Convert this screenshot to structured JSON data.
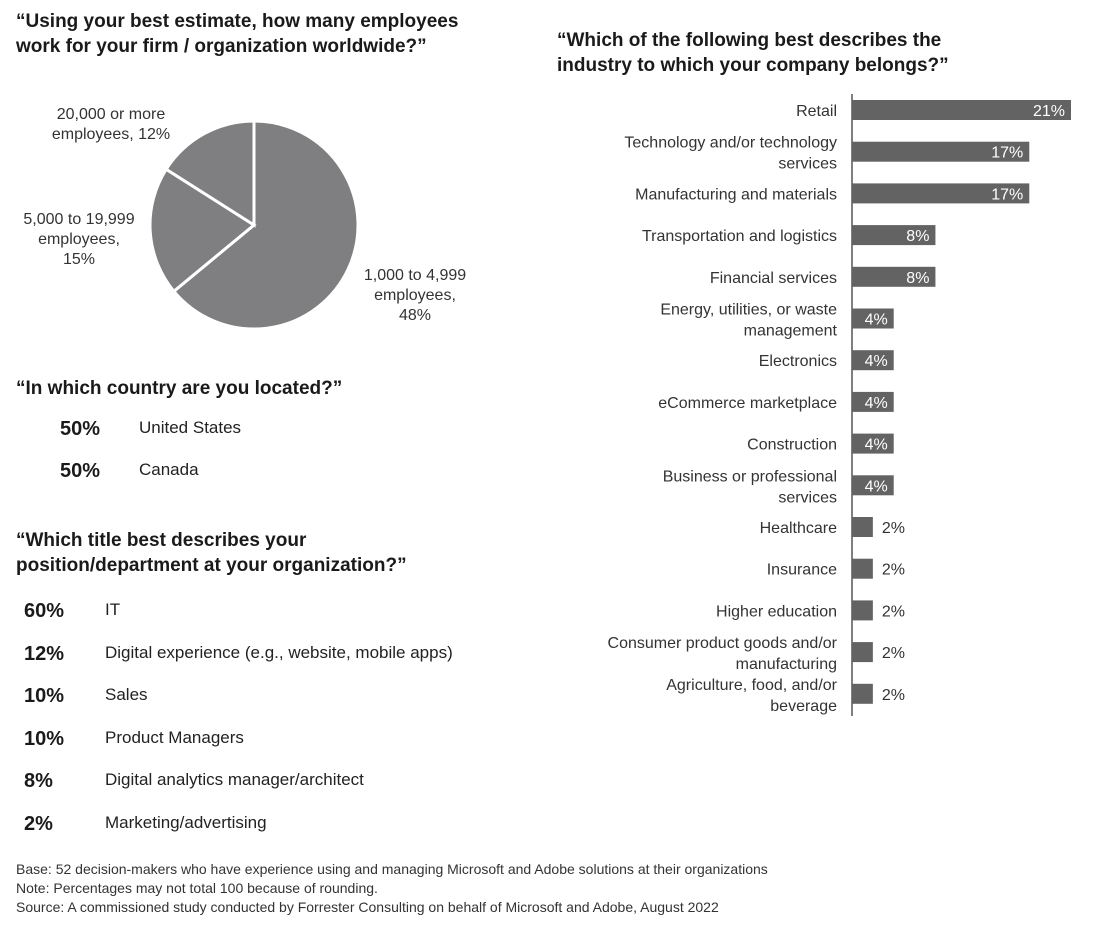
{
  "employees": {
    "question": "“Using your best estimate, how many employees work for your firm / organization worldwide?”",
    "slices": [
      {
        "label_line1": "1,000 to 4,999",
        "label_line2": "employees,",
        "label_line3": "48%"
      },
      {
        "label_line1": "5,000 to 19,999",
        "label_line2": "employees,",
        "label_line3": "15%"
      },
      {
        "label_line1": "20,000 or  more",
        "label_line2": "employees, 12%"
      }
    ]
  },
  "country": {
    "question": "“In which country are you located?”",
    "items": [
      {
        "pct": "50%",
        "label": "United States"
      },
      {
        "pct": "50%",
        "label": "Canada"
      }
    ]
  },
  "title": {
    "question_line1": "“Which title best describes your",
    "question_line2": "position/department at your organization?”",
    "items": [
      {
        "pct": "60%",
        "label": "IT"
      },
      {
        "pct": "12%",
        "label": "Digital experience (e.g., website, mobile apps)"
      },
      {
        "pct": "10%",
        "label": "Sales"
      },
      {
        "pct": "10%",
        "label": "Product Managers"
      },
      {
        "pct": "8%",
        "label": "Digital analytics manager/architect"
      },
      {
        "pct": "2%",
        "label": "Marketing/advertising"
      }
    ]
  },
  "industry": {
    "question_line1": "“Which of the following  best describes the",
    "question_line2": "industry to which your company belongs?”"
  },
  "footer": {
    "base": "Base: 52 decision-makers who have experience using and managing Microsoft and Adobe solutions at their organizations",
    "note": "Note: Percentages may not total 100 because of rounding.",
    "source": "Source: A commissioned study conducted by Forrester Consulting on behalf of Microsoft and Adobe, August 2022"
  },
  "colors": {
    "bar": "#636363",
    "pie": "#7f7f82",
    "pie_border": "#ffffff"
  },
  "chart_data": [
    {
      "type": "pie",
      "title": "“Using your best estimate, how many employees work for your firm / organization worldwide?”",
      "categories": [
        "1,000 to 4,999 employees",
        "5,000 to 19,999 employees",
        "20,000 or  more employees"
      ],
      "values": [
        48,
        15,
        12
      ],
      "unit": "%"
    },
    {
      "type": "bar",
      "orientation": "horizontal",
      "title": "“Which of the following  best describes the industry to which your company belongs?”",
      "categories": [
        [
          "Retail"
        ],
        [
          "Technology and/or technology",
          "services"
        ],
        [
          "Manufacturing and materials"
        ],
        [
          "Transportation and logistics"
        ],
        [
          "Financial services"
        ],
        [
          "Energy, utilities, or waste",
          "management"
        ],
        [
          "Electronics"
        ],
        [
          "eCommerce marketplace"
        ],
        [
          "Construction"
        ],
        [
          "Business or professional",
          "services"
        ],
        [
          "Healthcare"
        ],
        [
          "Insurance"
        ],
        [
          "Higher education"
        ],
        [
          "Consumer product goods and/or",
          "manufacturing"
        ],
        [
          "Agriculture, food, and/or",
          "beverage"
        ]
      ],
      "values": [
        21,
        17,
        17,
        8,
        8,
        4,
        4,
        4,
        4,
        4,
        2,
        2,
        2,
        2,
        2
      ],
      "value_labels": [
        "21%",
        "17%",
        "17%",
        "8%",
        "8%",
        "4%",
        "4%",
        "4%",
        "4%",
        "4%",
        "2%",
        "2%",
        "2%",
        "2%",
        "2%"
      ],
      "xlim": [
        0,
        21
      ],
      "grid": false
    }
  ]
}
